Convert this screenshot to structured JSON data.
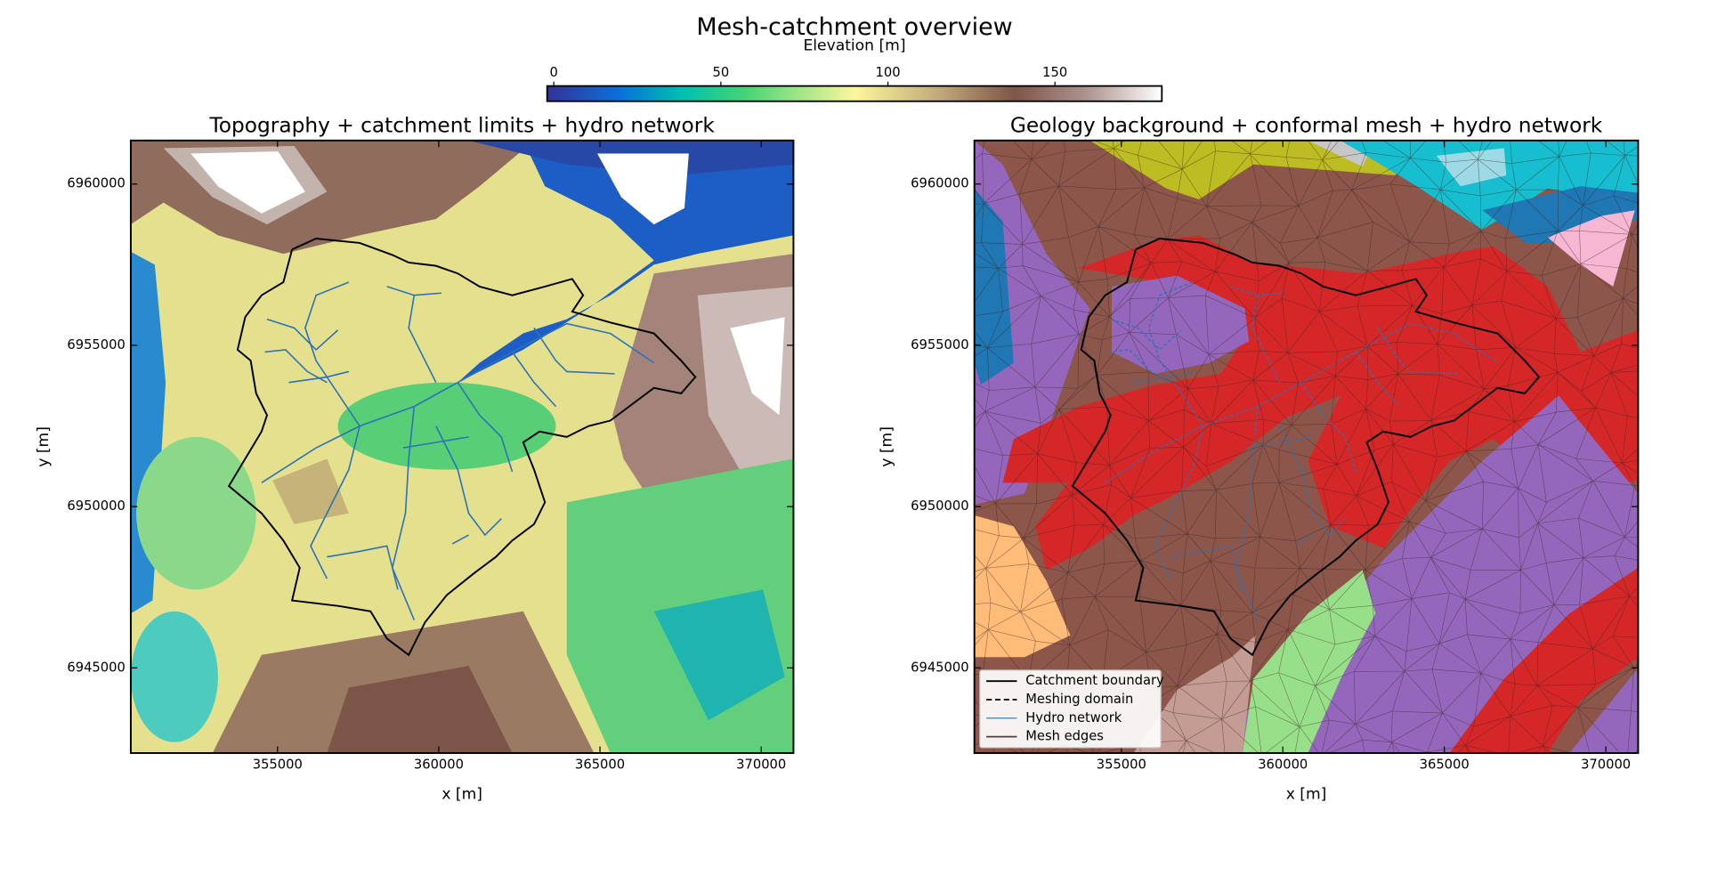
{
  "title": "Mesh-catchment overview",
  "chart_data": [
    {
      "type": "raster",
      "title": "Topography + catchment limits + hydro network",
      "xlabel": "x [m]",
      "ylabel": "y [m]",
      "xlim": [
        350450,
        371000
      ],
      "ylim": [
        6942360,
        6961350
      ],
      "xticks": [
        355000,
        360000,
        365000,
        370000
      ],
      "yticks": [
        6945000,
        6950000,
        6955000,
        6960000
      ],
      "colorbar": {
        "label": "Elevation [m]",
        "lim": [
          -2,
          182
        ],
        "ticks": [
          0,
          50,
          100,
          150
        ]
      }
    },
    {
      "type": "geology",
      "title": "Geology background + conformal mesh + hydro network",
      "xlabel": "x [m]",
      "ylabel": "y [m]",
      "xlim": [
        350450,
        371000
      ],
      "ylim": [
        6942360,
        6961350
      ],
      "xticks": [
        355000,
        360000,
        365000,
        370000
      ],
      "yticks": [
        6945000,
        6950000,
        6955000,
        6960000
      ],
      "legend": {
        "position": "lower left",
        "entries": [
          {
            "label": "Catchment boundary",
            "color": "#000000",
            "style": "solid"
          },
          {
            "label": "Meshing domain",
            "color": "#000000",
            "style": "dashed"
          },
          {
            "label": "Hydro network",
            "color": "#1f77b4",
            "style": "solid"
          },
          {
            "label": "Mesh edges",
            "color": "#5a3a34",
            "style": "solid"
          }
        ]
      }
    }
  ]
}
